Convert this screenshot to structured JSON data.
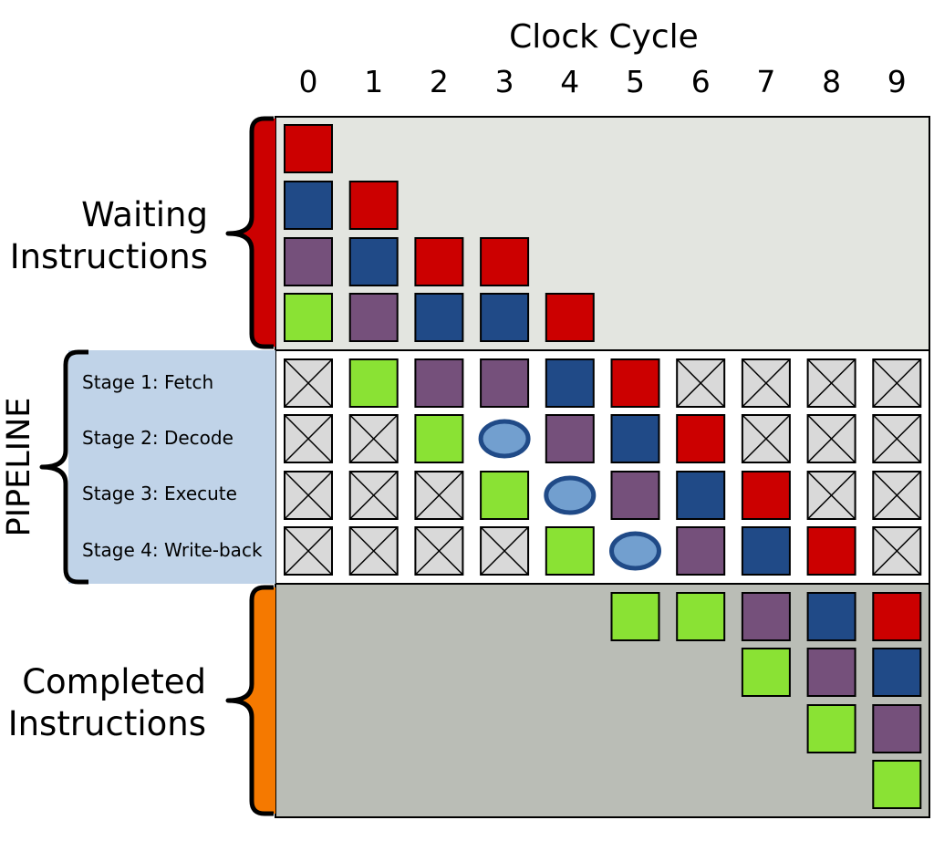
{
  "header": {
    "title": "Clock Cycle",
    "cycles": [
      "0",
      "1",
      "2",
      "3",
      "4",
      "5",
      "6",
      "7",
      "8",
      "9"
    ]
  },
  "sections": {
    "waiting": {
      "line1": "Waiting",
      "line2": "Instructions"
    },
    "pipeline": {
      "label": "PIPELINE"
    },
    "completed": {
      "line1": "Completed",
      "line2": "Instructions"
    }
  },
  "stages": [
    {
      "label": "Stage 1: Fetch"
    },
    {
      "label": "Stage 2: Decode"
    },
    {
      "label": "Stage 3: Execute"
    },
    {
      "label": "Stage 4: Write-back"
    }
  ],
  "colors": {
    "red": "#cc0000",
    "blue": "#204a87",
    "purple": "#75507b",
    "green": "#8ae234",
    "bubble_fill": "#729fcf",
    "bubble_stroke": "#204a87",
    "empty_slot": "#d9d9d9",
    "waiting_bg": "#e3e5e0",
    "pipeline_bg": "#ffffff",
    "completed_bg": "#babdb6",
    "stage_label_bg": "#c0d3e8",
    "brace_waiting": "#cc0000",
    "brace_completed": "#f57900"
  },
  "chart_data": {
    "type": "table",
    "cycles": [
      0,
      1,
      2,
      3,
      4,
      5,
      6,
      7,
      8,
      9
    ],
    "waiting_queue": [
      [
        "red",
        "blue",
        "purple",
        "green"
      ],
      [
        "red",
        "blue",
        "purple"
      ],
      [
        "red",
        "blue"
      ],
      [
        "red",
        "blue"
      ],
      [
        "red"
      ],
      [],
      [],
      [],
      [],
      []
    ],
    "pipeline": {
      "Stage 1: Fetch": [
        "empty",
        "green",
        "purple",
        "purple",
        "blue",
        "red",
        "empty",
        "empty",
        "empty",
        "empty"
      ],
      "Stage 2: Decode": [
        "empty",
        "empty",
        "green",
        "bubble",
        "purple",
        "blue",
        "red",
        "empty",
        "empty",
        "empty"
      ],
      "Stage 3: Execute": [
        "empty",
        "empty",
        "empty",
        "green",
        "bubble",
        "purple",
        "blue",
        "red",
        "empty",
        "empty"
      ],
      "Stage 4: Write-back": [
        "empty",
        "empty",
        "empty",
        "empty",
        "green",
        "bubble",
        "purple",
        "blue",
        "red",
        "empty"
      ]
    },
    "completed": [
      [],
      [],
      [],
      [],
      [],
      [
        "green"
      ],
      [
        "green"
      ],
      [
        "purple",
        "green"
      ],
      [
        "blue",
        "purple",
        "green"
      ],
      [
        "red",
        "blue",
        "purple",
        "green"
      ]
    ]
  }
}
